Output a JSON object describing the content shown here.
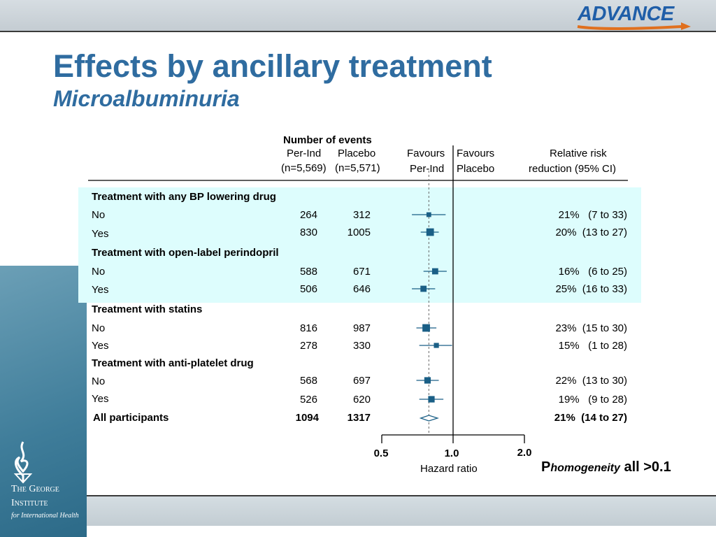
{
  "header": {
    "logo_text": "ADVANCE",
    "title": "Effects by ancillary treatment",
    "subtitle": "Microalbuminuria"
  },
  "branding": {
    "line1": "The George",
    "line2": "Institute",
    "line3": "for International Health"
  },
  "columns": {
    "events_header": "Number of events",
    "col1_line1": "Per-Ind",
    "col1_line2": "(n=5,569)",
    "col2_line1": "Placebo",
    "col2_line2": "(n=5,571)",
    "fav1_line1": "Favours",
    "fav1_line2": "Per-Ind",
    "fav2_line1": "Favours",
    "fav2_line2": "Placebo",
    "rrr_line1": "Relative risk",
    "rrr_line2": "reduction (95% CI)"
  },
  "groups": [
    {
      "label": "Treatment with any BP  lowering drug"
    },
    {
      "label": "Treatment with open-label perindopril"
    },
    {
      "label": "Treatment with statins"
    },
    {
      "label": "Treatment with anti-platelet drug"
    }
  ],
  "rows": [
    {
      "label": "No",
      "per_ind": "264",
      "placebo": "312",
      "rrr": "21%   (7 to 33)"
    },
    {
      "label": "Yes",
      "per_ind": "830",
      "placebo": "1005",
      "rrr": "20%  (13 to 27)"
    },
    {
      "label": "No",
      "per_ind": "588",
      "placebo": "671",
      "rrr": "16%   (6 to 25)"
    },
    {
      "label": "Yes",
      "per_ind": "506",
      "placebo": "646",
      "rrr": "25%  (16 to 33)"
    },
    {
      "label": "No",
      "per_ind": "816",
      "placebo": "987",
      "rrr": "23%  (15 to 30)"
    },
    {
      "label": "Yes",
      "per_ind": "278",
      "placebo": "330",
      "rrr": "15%   (1 to 28)"
    },
    {
      "label": "No",
      "per_ind": "568",
      "placebo": "697",
      "rrr": "22%  (13 to 30)"
    },
    {
      "label": "Yes",
      "per_ind": "526",
      "placebo": "620",
      "rrr": "19%   (9 to 28)"
    }
  ],
  "overall": {
    "label": "All participants",
    "per_ind": "1094",
    "placebo": "1317",
    "rrr": "21%  (14 to 27)"
  },
  "axis": {
    "xlabel": "Hazard ratio",
    "ticks": [
      "0.5",
      "1.0",
      "2.0"
    ]
  },
  "homogeneity": {
    "p": "P",
    "word": "homogeneity",
    "value": " all >0.1"
  },
  "chart_data": {
    "type": "forest",
    "xscale": "log",
    "xlim": [
      0.5,
      2.0
    ],
    "reference_line": 1.0,
    "overall_line": 0.79,
    "series": [
      {
        "hr": 0.79,
        "lo": 0.67,
        "hi": 0.93,
        "weight": 0.35
      },
      {
        "hr": 0.8,
        "lo": 0.73,
        "hi": 0.87,
        "weight": 0.85
      },
      {
        "hr": 0.84,
        "lo": 0.75,
        "hi": 0.94,
        "weight": 0.6
      },
      {
        "hr": 0.75,
        "lo": 0.67,
        "hi": 0.84,
        "weight": 0.6
      },
      {
        "hr": 0.77,
        "lo": 0.7,
        "hi": 0.85,
        "weight": 0.85
      },
      {
        "hr": 0.85,
        "lo": 0.72,
        "hi": 0.99,
        "weight": 0.4
      },
      {
        "hr": 0.78,
        "lo": 0.7,
        "hi": 0.87,
        "weight": 0.65
      },
      {
        "hr": 0.81,
        "lo": 0.72,
        "hi": 0.91,
        "weight": 0.65
      }
    ],
    "overall": {
      "hr": 0.79,
      "lo": 0.73,
      "hi": 0.86
    }
  }
}
